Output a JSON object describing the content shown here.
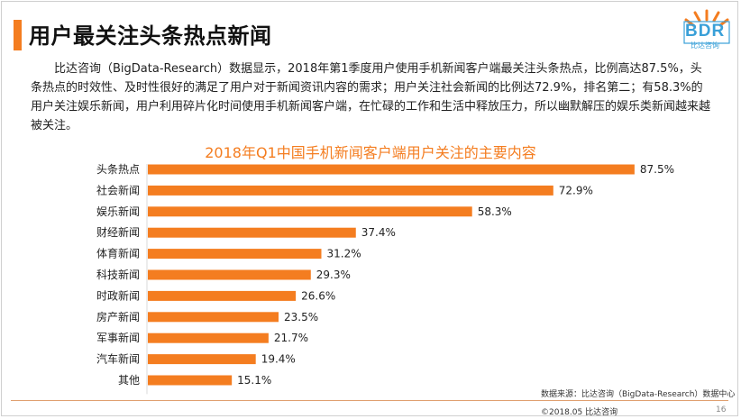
{
  "header": {
    "title": "用户最关注头条热点新闻",
    "logo_text": "BDR",
    "logo_sub": "比达咨询"
  },
  "intro": "比达咨询（BigData-Research）数据显示，2018年第1季度用户使用手机新闻客户端最关注头条热点，比例高达87.5%，头条热点的时效性、及时性很好的满足了用户对于新闻资讯内容的需求；用户关注社会新闻的比例达72.9%，排名第二；有58.3%的用户关注娱乐新闻，用户利用碎片化时间使用手机新闻客户端，在忙碌的工作和生活中释放压力，所以幽默解压的娱乐类新闻越来越被关注。",
  "chart_data": {
    "type": "bar",
    "orientation": "horizontal",
    "title": "2018年Q1中国手机新闻客户端用户关注的主要内容",
    "categories": [
      "头条热点",
      "社会新闻",
      "娱乐新闻",
      "财经新闻",
      "体育新闻",
      "科技新闻",
      "时政新闻",
      "房产新闻",
      "军事新闻",
      "汽车新闻",
      "其他"
    ],
    "values": [
      87.5,
      72.9,
      58.3,
      37.4,
      31.2,
      29.3,
      26.6,
      23.5,
      21.7,
      19.4,
      15.1
    ],
    "value_suffix": "%",
    "xlim": [
      0,
      100
    ],
    "bar_color": "#f47d20",
    "xlabel": "",
    "ylabel": ""
  },
  "footer": {
    "source": "数据来源：比达咨询（BigData-Research）数据中心",
    "copyright": "©2018.05  比达咨询",
    "page": "16"
  },
  "colors": {
    "accent": "#f47d20",
    "logo": "#3aa0d8"
  }
}
